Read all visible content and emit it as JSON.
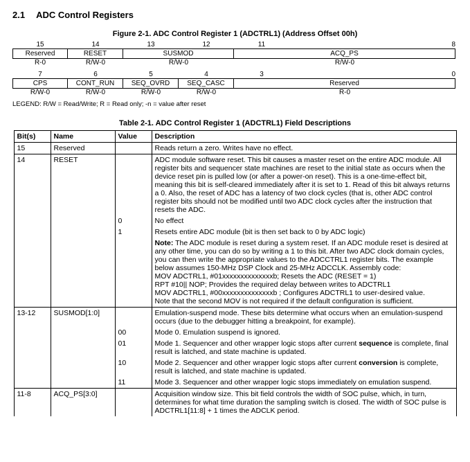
{
  "section": {
    "number": "2.1",
    "title": "ADC Control Registers"
  },
  "figure_caption": "Figure 2-1.  ADC Control Register 1 (ADCTRL1) (Address Offset 00h)",
  "bits_hi": {
    "b15": "15",
    "b14": "14",
    "b13": "13",
    "b12": "12",
    "b11": "11",
    "b8": "8"
  },
  "fields_hi": {
    "reserved": "Reserved",
    "reset": "RESET",
    "susmod": "SUSMOD",
    "acq_ps": "ACQ_PS"
  },
  "access_hi": {
    "reserved": "R-0",
    "reset": "R/W-0",
    "susmod": "R/W-0",
    "acq_ps": "R/W-0"
  },
  "bits_lo": {
    "b7": "7",
    "b6": "6",
    "b5": "5",
    "b4": "4",
    "b3": "3",
    "b0": "0"
  },
  "fields_lo": {
    "cps": "CPS",
    "cont": "CONT_RUN",
    "ovrd": "SEQ_OVRD",
    "casc": "SEQ_CASC",
    "reserved": "Reserved"
  },
  "access_lo": {
    "cps": "R/W-0",
    "cont": "R/W-0",
    "ovrd": "R/W-0",
    "casc": "R/W-0",
    "reserved": "R-0"
  },
  "legend": "LEGEND: R/W = Read/Write; R = Read only; -n = value after reset",
  "table_caption": "Table 2-1. ADC Control Register 1 (ADCTRL1) Field Descriptions",
  "headers": {
    "bits": "Bit(s)",
    "name": "Name",
    "value": "Value",
    "desc": "Description"
  },
  "rows": {
    "r15": {
      "bits": "15",
      "name": "Reserved",
      "desc": "Reads return a zero. Writes have no effect."
    },
    "r14": {
      "bits": "14",
      "name": "RESET",
      "desc_main": "ADC module software reset. This bit causes a master reset on the entire ADC module. All register bits and sequencer state machines are reset to the initial state as occurs when the device reset pin is pulled low (or after a power-on reset). This is a one-time-effect bit, meaning this bit is self-cleared immediately after it is set to 1. Read of this bit always returns a 0. Also, the reset of ADC has a latency of two clock cycles (that is, other ADC control register bits should not be modified until two ADC clock cycles after the instruction that resets the ADC.",
      "v0": "0",
      "d0": "No effect",
      "v1": "1",
      "d1": "Resets entire ADC module (bit is then set back to 0 by ADC logic)",
      "note_label": "Note:",
      "note": " The ADC module is reset during a system reset. If an ADC module reset is desired at any other time, you can do so by writing a 1 to this bit. After two ADC clock domain cycles, you can then write the appropriate values to the ADCCTRL1 register bits. The example below assumes 150-MHz DSP Clock and 25-MHz ADCCLK. Assembly code:",
      "asm1": "MOV ADCTRL1, #01xxxxxxxxxxxxxxb; Resets the ADC (RESET = 1)",
      "asm2": "RPT #10|| NOP; Provides the required delay between writes to ADCTRL1",
      "asm3": "MOV ADCTRL1, #00xxxxxxxxxxxxxxb ; Configures ADCTRL1 to user-desired value.",
      "asm4": "Note that the second MOV is not required if the default configuration is sufficient."
    },
    "r1312": {
      "bits": "13-12",
      "name": "SUSMOD[1:0]",
      "desc_main": "Emulation-suspend mode. These bits determine what occurs when an emulation-suspend occurs (due to the debugger hitting a breakpoint, for example).",
      "v00": "00",
      "d00": "Mode 0. Emulation suspend is ignored.",
      "v01": "01",
      "d01a": "Mode 1. Sequencer and other wrapper logic stops after current ",
      "d01b": "sequence",
      "d01c": " is complete, final result is latched, and state machine is updated.",
      "v10": "10",
      "d10a": "Mode 2. Sequencer and other wrapper logic stops after current ",
      "d10b": "conversion",
      "d10c": " is complete, result is latched, and state machine is updated.",
      "v11": "11",
      "d11": "Mode 3. Sequencer and other wrapper logic stops immediately on emulation suspend."
    },
    "r118": {
      "bits": "11-8",
      "name": "ACQ_PS[3:0]",
      "desc": "Acquisition window size. This bit field controls the width of SOC pulse, which, in turn, determines for what time duration the sampling switch is closed. The width of SOC pulse is ADCTRL1[11:8] + 1 times the ADCLK period."
    }
  }
}
